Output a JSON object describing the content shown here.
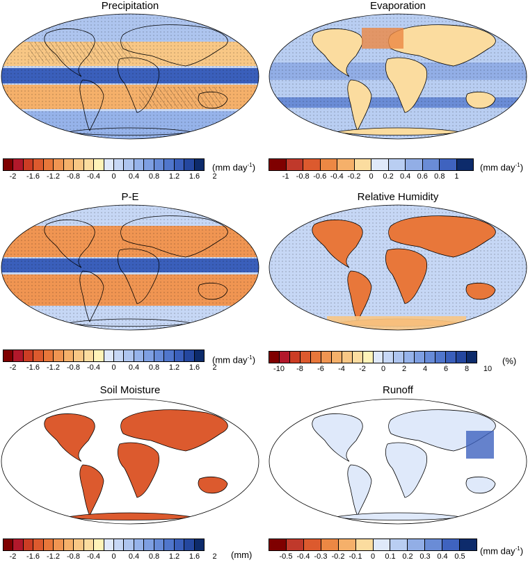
{
  "panels": [
    {
      "title": "Precipitation",
      "unit": "mm day",
      "unit_sup": "-1",
      "ticks": [
        "-2",
        "-1.6",
        "-1.2",
        "-0.8",
        "-0.4",
        "0",
        "0.4",
        "0.8",
        "1.2",
        "1.6",
        "2"
      ],
      "scheme": "p20"
    },
    {
      "title": "Evaporation",
      "unit": "mm day",
      "unit_sup": "-1",
      "ticks": [
        "-1",
        "-0.8",
        "-0.6",
        "-0.4",
        "-0.2",
        "0",
        "0.2",
        "0.4",
        "0.6",
        "0.8",
        "1"
      ],
      "scheme": "e12"
    },
    {
      "title": "P-E",
      "unit": "mm day",
      "unit_sup": "-1",
      "ticks": [
        "-2",
        "-1.6",
        "-1.2",
        "-0.8",
        "-0.4",
        "0",
        "0.4",
        "0.8",
        "1.2",
        "1.6",
        "2"
      ],
      "scheme": "p20"
    },
    {
      "title": "Relative Humidity",
      "unit": "(%)",
      "unit_sup": "",
      "ticks": [
        "-10",
        "-8",
        "-6",
        "-4",
        "-2",
        "0",
        "2",
        "4",
        "6",
        "8",
        "10"
      ],
      "scheme": "p20"
    },
    {
      "title": "Soil Moisture",
      "unit": "(mm)",
      "unit_sup": "",
      "ticks": [
        "-2",
        "-1.6",
        "-1.2",
        "-0.8",
        "-0.4",
        "0",
        "0.4",
        "0.8",
        "1.2",
        "1.6",
        "2"
      ],
      "scheme": "p20"
    },
    {
      "title": "Runoff",
      "unit": "mm day",
      "unit_sup": "-1",
      "ticks": [
        "-0.5",
        "-0.4",
        "-0.3",
        "-0.2",
        "-0.1",
        "0",
        "0.1",
        "0.2",
        "0.3",
        "0.4",
        "0.5"
      ],
      "scheme": "e12"
    }
  ],
  "colors": {
    "p20": [
      "#7f0000",
      "#b2182b",
      "#cc3d24",
      "#dc5a2e",
      "#e8773a",
      "#f09552",
      "#f5b06a",
      "#f8c785",
      "#fbdc9f",
      "#fff3b8",
      "#dfe9fa",
      "#c6d7f5",
      "#aec5ef",
      "#96b3ea",
      "#7e9fe2",
      "#678bd8",
      "#5076cc",
      "#3a5fbb",
      "#24479f",
      "#0d2b6b"
    ],
    "e12": [
      "#7f0000",
      "#c0392b",
      "#dc5a2e",
      "#ec8844",
      "#f5b06a",
      "#fbdc9f",
      "#dfe9fa",
      "#b9cef2",
      "#92aee6",
      "#6a8cd6",
      "#3f63bf",
      "#0d2b6b"
    ]
  }
}
